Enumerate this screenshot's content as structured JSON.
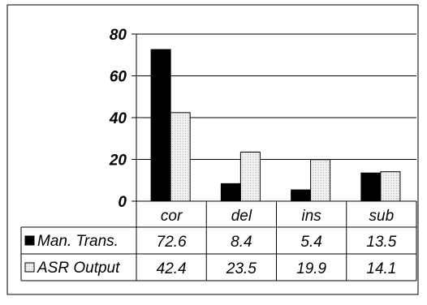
{
  "chart_data": {
    "type": "bar",
    "categories": [
      "cor",
      "del",
      "ins",
      "sub"
    ],
    "series": [
      {
        "name": "Man. Trans.",
        "values": [
          72.6,
          8.4,
          5.4,
          13.5
        ],
        "fill": "#000000"
      },
      {
        "name": "ASR Output",
        "values": [
          42.4,
          23.5,
          19.9,
          14.1
        ],
        "fill": "#e8e8e8"
      }
    ],
    "table_rows": [
      {
        "label": "Man. Trans.",
        "values": [
          "72.6",
          "8.4",
          "5.4",
          "13.5"
        ]
      },
      {
        "label": "ASR Output",
        "values": [
          "42.4",
          "23.5",
          "19.9",
          "14.1"
        ]
      }
    ],
    "ylim": [
      0,
      80
    ],
    "yticks": [
      0,
      20,
      40,
      60,
      80
    ],
    "ytick_labels": [
      "0",
      "20",
      "40",
      "60",
      "80"
    ],
    "title": "",
    "xlabel": "",
    "ylabel": "",
    "grid": true,
    "legend": "data-table"
  }
}
